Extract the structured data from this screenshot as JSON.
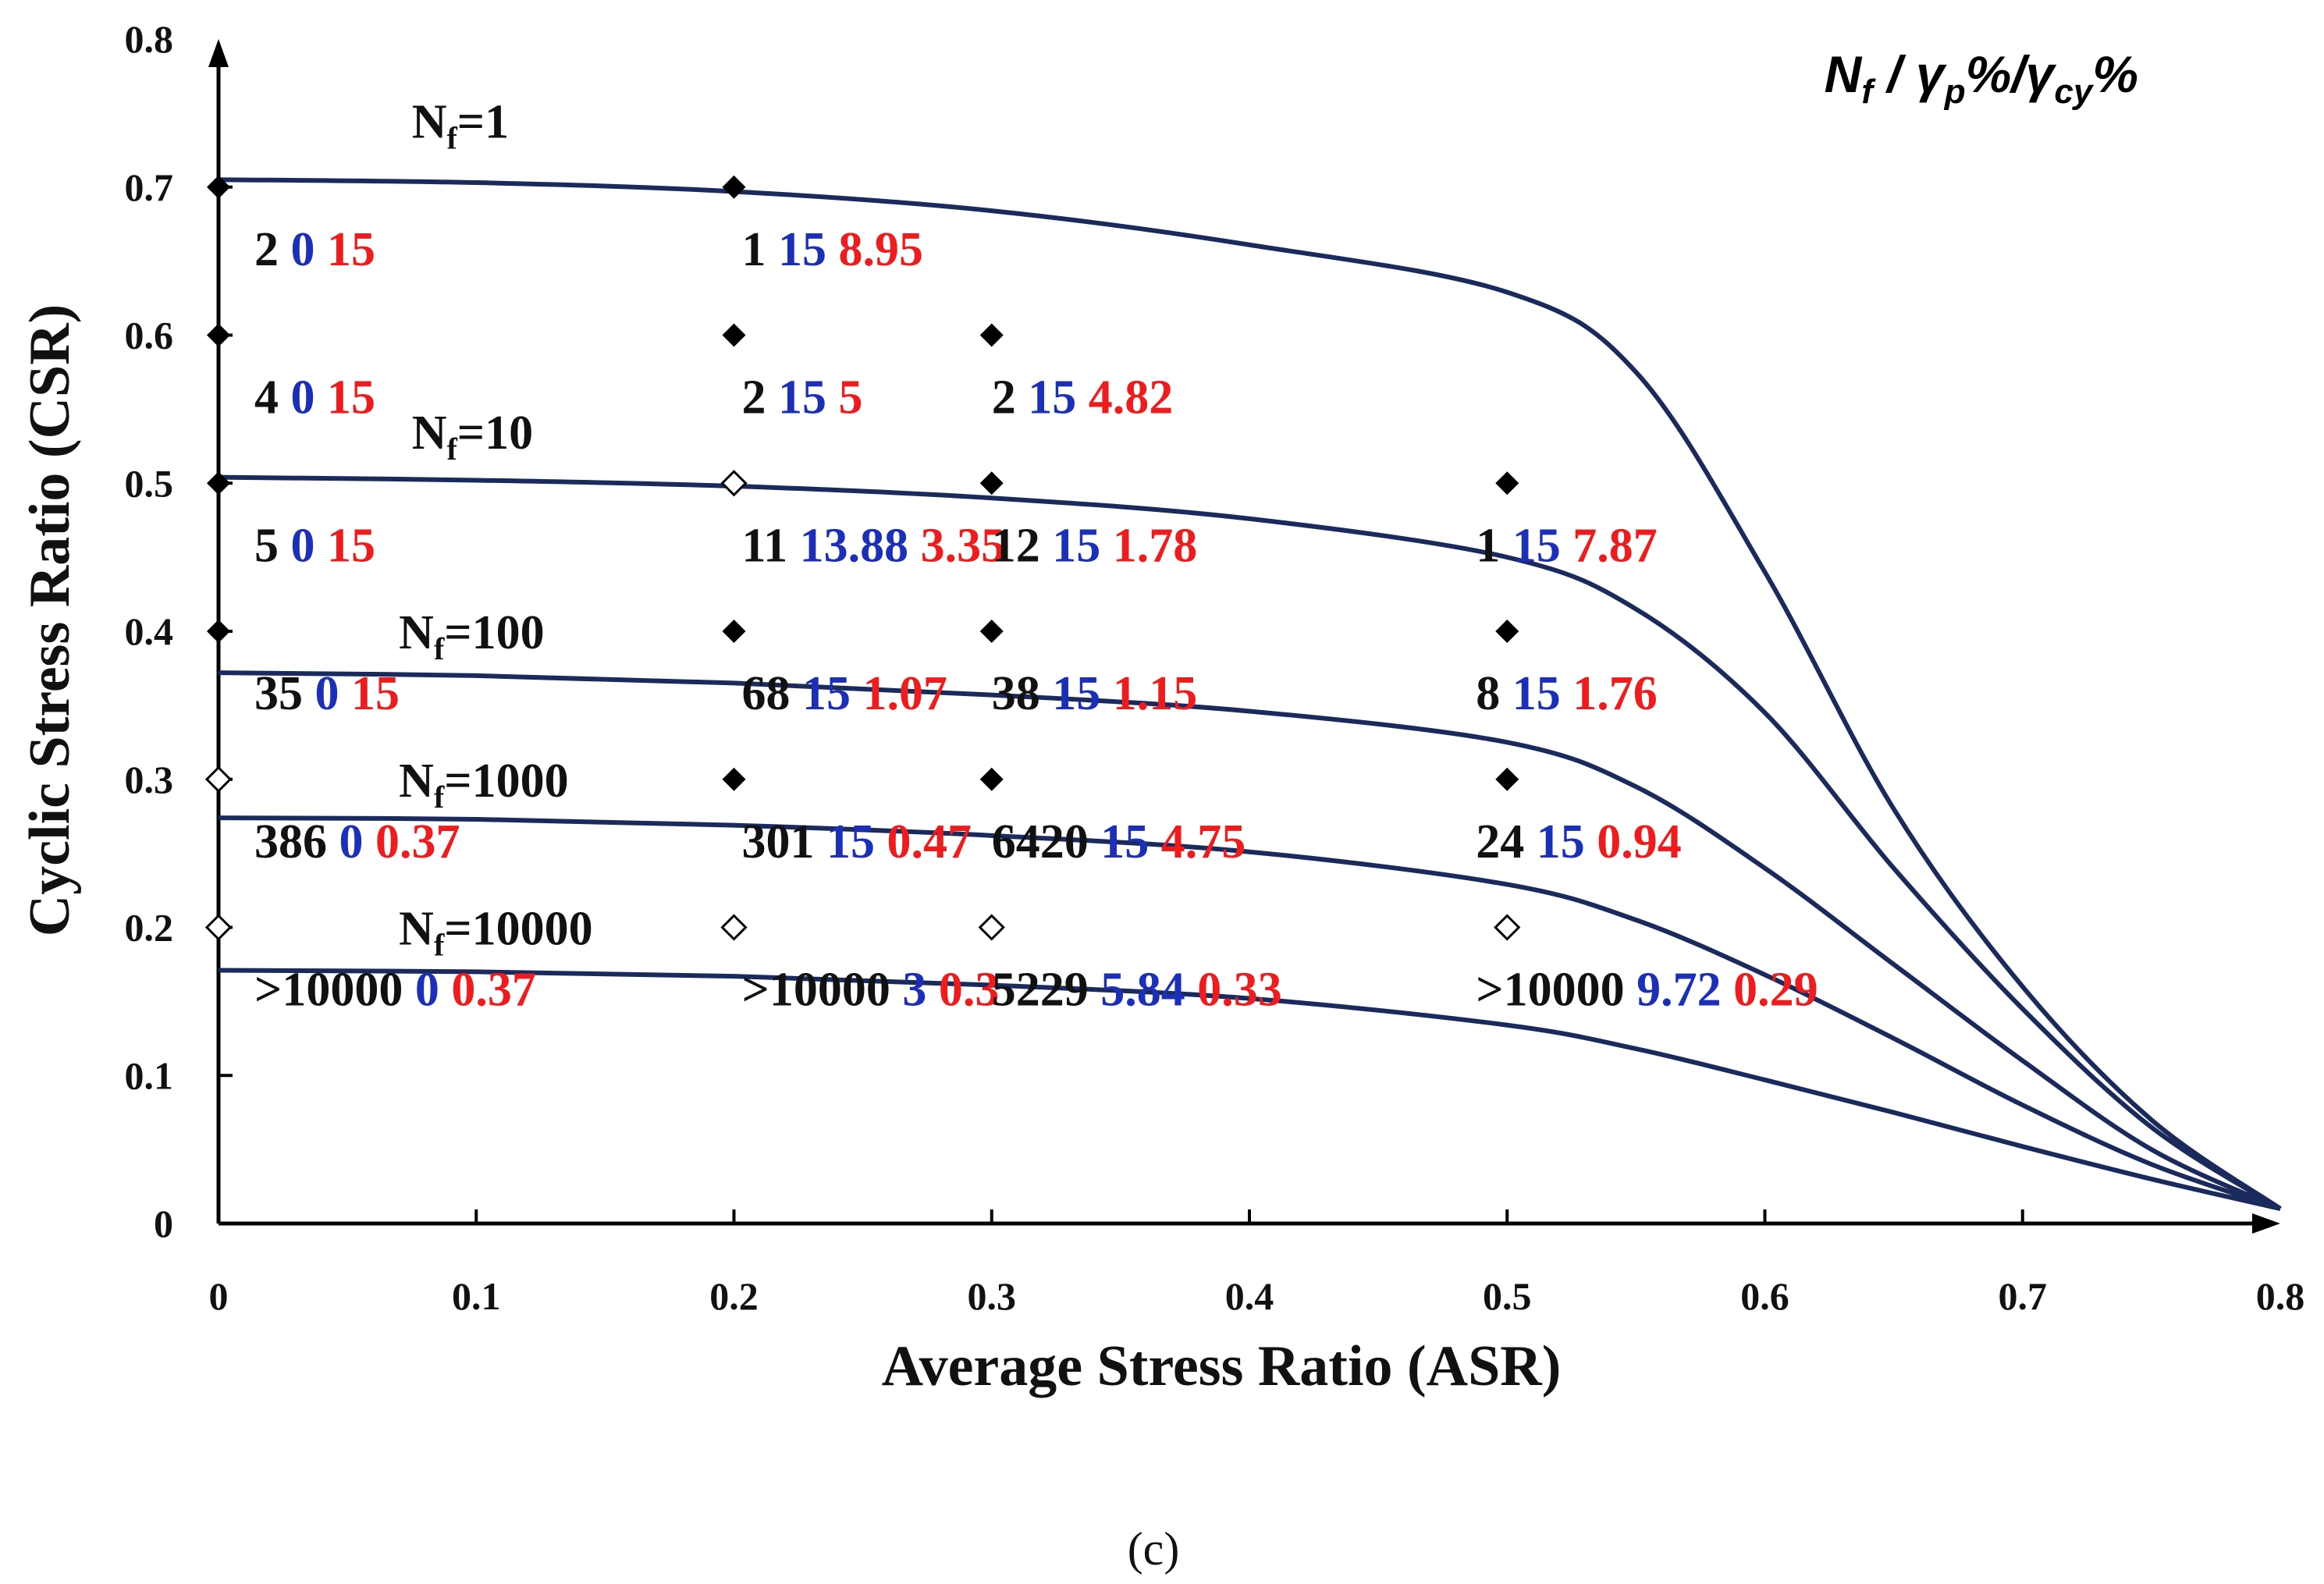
{
  "colors": {
    "curve": "#1b2a5c",
    "nf": "#111111",
    "gamma_p": "#1c2fb8",
    "gamma_cy": "#ee1c1c",
    "axis": "#000000"
  },
  "legend": {
    "nf": "N",
    "nf_sub": "f",
    "sep1": " / ",
    "gp": "γ",
    "gp_sub": "p",
    "pct1": "%",
    "sep2": "/",
    "gcy": "γ",
    "gcy_sub": "cy",
    "pct2": "%"
  },
  "caption": "(c)",
  "chart_data": {
    "type": "scatter",
    "xlabel": "Average Stress Ratio (ASR)",
    "ylabel": "Cyclic Stress Ratio (CSR)",
    "xlim": [
      0,
      0.8
    ],
    "ylim": [
      0,
      0.8
    ],
    "x_ticks": [
      "0",
      "0.1",
      "0.2",
      "0.3",
      "0.4",
      "0.5",
      "0.6",
      "0.7",
      "0.8"
    ],
    "y_ticks": [
      "0",
      "0.1",
      "0.2",
      "0.3",
      "0.4",
      "0.5",
      "0.6",
      "0.7",
      "0.8"
    ],
    "curves": [
      {
        "prefix": "N",
        "sub": "f",
        "suffix": "=1",
        "csr0": 0.705,
        "end_asr": 0.8,
        "points": [
          [
            0,
            0.705
          ],
          [
            0.1,
            0.703
          ],
          [
            0.2,
            0.697
          ],
          [
            0.3,
            0.684
          ],
          [
            0.4,
            0.661
          ],
          [
            0.5,
            0.629
          ],
          [
            0.55,
            0.575
          ],
          [
            0.6,
            0.44
          ],
          [
            0.65,
            0.28
          ],
          [
            0.7,
            0.16
          ],
          [
            0.75,
            0.07
          ],
          [
            0.8,
            0.01
          ]
        ]
      },
      {
        "prefix": "N",
        "sub": "f",
        "suffix": "=10",
        "csr0": 0.504,
        "end_asr": 0.8,
        "points": [
          [
            0,
            0.504
          ],
          [
            0.1,
            0.502
          ],
          [
            0.2,
            0.498
          ],
          [
            0.3,
            0.49
          ],
          [
            0.4,
            0.476
          ],
          [
            0.5,
            0.45
          ],
          [
            0.55,
            0.415
          ],
          [
            0.6,
            0.345
          ],
          [
            0.65,
            0.24
          ],
          [
            0.7,
            0.145
          ],
          [
            0.75,
            0.065
          ],
          [
            0.8,
            0.01
          ]
        ]
      },
      {
        "prefix": "N",
        "sub": "f",
        "suffix": "=100",
        "csr0": 0.372,
        "end_asr": 0.8,
        "points": [
          [
            0,
            0.372
          ],
          [
            0.1,
            0.37
          ],
          [
            0.2,
            0.365
          ],
          [
            0.3,
            0.357
          ],
          [
            0.4,
            0.346
          ],
          [
            0.5,
            0.325
          ],
          [
            0.55,
            0.295
          ],
          [
            0.6,
            0.24
          ],
          [
            0.65,
            0.175
          ],
          [
            0.7,
            0.11
          ],
          [
            0.75,
            0.05
          ],
          [
            0.8,
            0.01
          ]
        ]
      },
      {
        "prefix": "N",
        "sub": "f",
        "suffix": "=1000",
        "csr0": 0.274,
        "end_asr": 0.8,
        "points": [
          [
            0,
            0.274
          ],
          [
            0.1,
            0.273
          ],
          [
            0.2,
            0.269
          ],
          [
            0.3,
            0.262
          ],
          [
            0.4,
            0.251
          ],
          [
            0.5,
            0.229
          ],
          [
            0.55,
            0.205
          ],
          [
            0.6,
            0.168
          ],
          [
            0.65,
            0.125
          ],
          [
            0.7,
            0.08
          ],
          [
            0.75,
            0.04
          ],
          [
            0.8,
            0.01
          ]
        ]
      },
      {
        "prefix": "N",
        "sub": "f",
        "suffix": "=10000",
        "csr0": 0.171,
        "end_asr": 0.8,
        "points": [
          [
            0,
            0.171
          ],
          [
            0.1,
            0.17
          ],
          [
            0.2,
            0.167
          ],
          [
            0.3,
            0.161
          ],
          [
            0.4,
            0.152
          ],
          [
            0.5,
            0.134
          ],
          [
            0.55,
            0.118
          ],
          [
            0.6,
            0.097
          ],
          [
            0.65,
            0.075
          ],
          [
            0.7,
            0.052
          ],
          [
            0.75,
            0.03
          ],
          [
            0.8,
            0.01
          ]
        ]
      }
    ],
    "points": [
      {
        "asr": 0,
        "csr": 0.7,
        "filled": true,
        "nf": "2",
        "gp": "0",
        "gcy": "15"
      },
      {
        "asr": 0.2,
        "csr": 0.7,
        "filled": true,
        "nf": "1",
        "gp": "15",
        "gcy": "8.95"
      },
      {
        "asr": 0,
        "csr": 0.6,
        "filled": true,
        "nf": "4",
        "gp": "0",
        "gcy": "15"
      },
      {
        "asr": 0.2,
        "csr": 0.6,
        "filled": true,
        "nf": "2",
        "gp": "15",
        "gcy": "5"
      },
      {
        "asr": 0.3,
        "csr": 0.6,
        "filled": true,
        "nf": "2",
        "gp": "15",
        "gcy": "4.82"
      },
      {
        "asr": 0,
        "csr": 0.5,
        "filled": true,
        "nf": "5",
        "gp": "0",
        "gcy": "15"
      },
      {
        "asr": 0.2,
        "csr": 0.5,
        "filled": false,
        "nf": "11",
        "gp": "13.88",
        "gcy": "3.35"
      },
      {
        "asr": 0.3,
        "csr": 0.5,
        "filled": true,
        "nf": "12",
        "gp": "15",
        "gcy": "1.78"
      },
      {
        "asr": 0.5,
        "csr": 0.5,
        "filled": true,
        "nf": "1",
        "gp": "15",
        "gcy": "7.87"
      },
      {
        "asr": 0,
        "csr": 0.4,
        "filled": true,
        "nf": "35",
        "gp": "0",
        "gcy": "15"
      },
      {
        "asr": 0.2,
        "csr": 0.4,
        "filled": true,
        "nf": "68",
        "gp": "15",
        "gcy": "1.07"
      },
      {
        "asr": 0.3,
        "csr": 0.4,
        "filled": true,
        "nf": "38",
        "gp": "15",
        "gcy": "1.15"
      },
      {
        "asr": 0.5,
        "csr": 0.4,
        "filled": true,
        "nf": "8",
        "gp": "15",
        "gcy": "1.76"
      },
      {
        "asr": 0,
        "csr": 0.3,
        "filled": false,
        "nf": "386",
        "gp": "0",
        "gcy": "0.37"
      },
      {
        "asr": 0.2,
        "csr": 0.3,
        "filled": true,
        "nf": "301",
        "gp": "15",
        "gcy": "0.47"
      },
      {
        "asr": 0.3,
        "csr": 0.3,
        "filled": true,
        "nf": "6420",
        "gp": "15",
        "gcy": "4.75"
      },
      {
        "asr": 0.5,
        "csr": 0.3,
        "filled": true,
        "nf": "24",
        "gp": "15",
        "gcy": "0.94"
      },
      {
        "asr": 0,
        "csr": 0.2,
        "filled": false,
        "nf": ">10000",
        "gp": "0",
        "gcy": "0.37"
      },
      {
        "asr": 0.2,
        "csr": 0.2,
        "filled": false,
        "nf": ">10000",
        "gp": "3",
        "gcy": "0.3"
      },
      {
        "asr": 0.3,
        "csr": 0.2,
        "filled": false,
        "nf": "5229",
        "gp": "5.84",
        "gcy": "0.33"
      },
      {
        "asr": 0.5,
        "csr": 0.2,
        "filled": false,
        "nf": ">10000",
        "gp": "9.72",
        "gcy": "0.29"
      }
    ]
  }
}
